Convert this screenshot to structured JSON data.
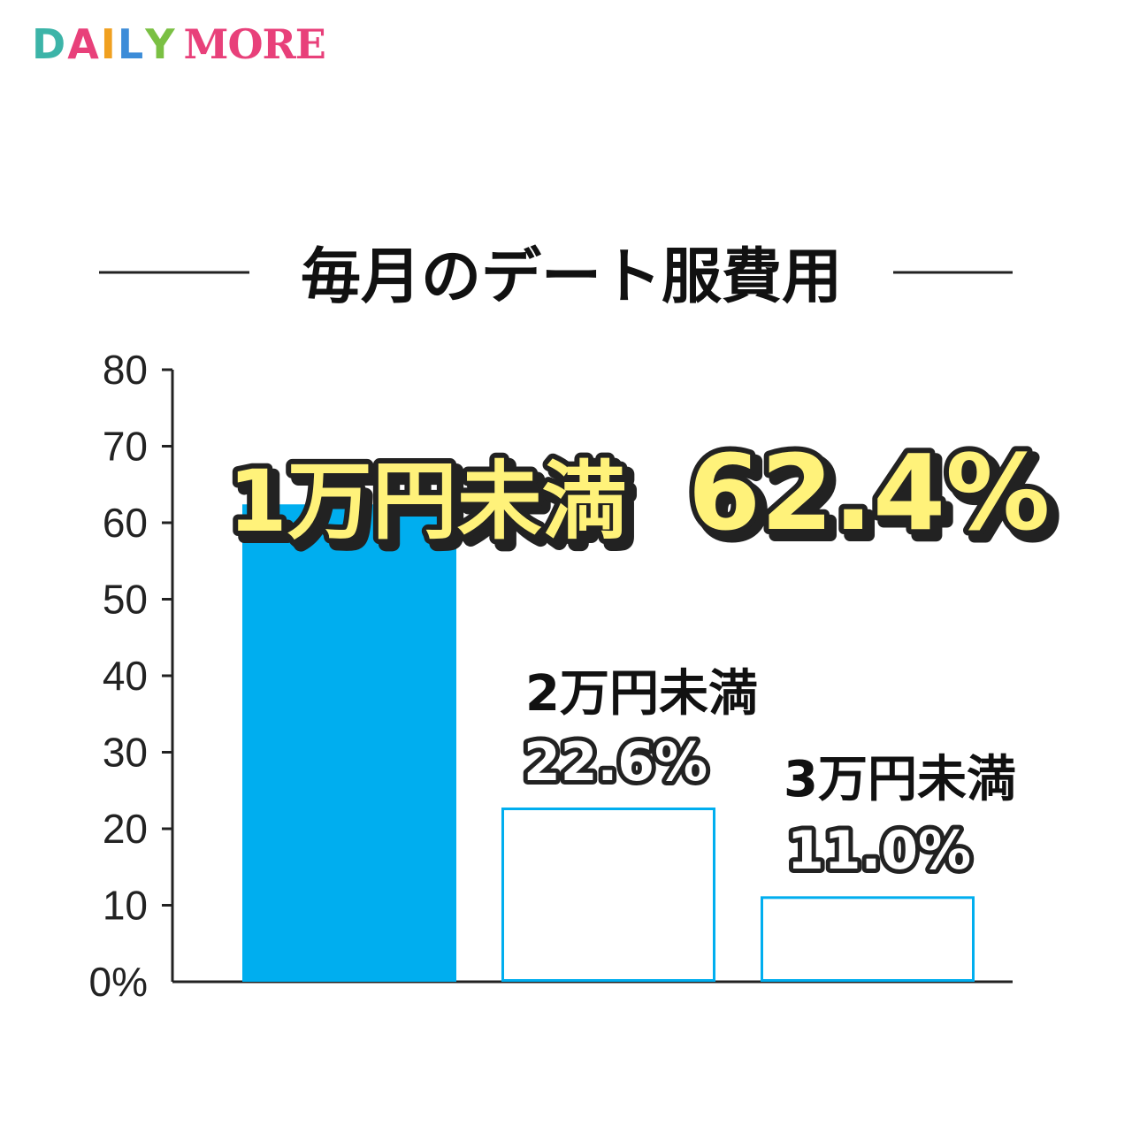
{
  "brand": {
    "logo_part1": "DAILY",
    "logo_part2": "MORE",
    "logo_color_more": "#e8407a"
  },
  "chart_data": {
    "type": "bar",
    "title": "毎月のデート服費用",
    "categories": [
      "1万円未満",
      "2万円未満",
      "3万円未満"
    ],
    "values": [
      62.4,
      22.6,
      11.0
    ],
    "value_labels": [
      "62.4%",
      "22.6%",
      "11.0%"
    ],
    "ylim": [
      0,
      80
    ],
    "yticks": [
      "0%",
      "10",
      "20",
      "30",
      "40",
      "50",
      "60",
      "70",
      "80"
    ],
    "ytick_values": [
      0,
      10,
      20,
      30,
      40,
      50,
      60,
      70,
      80
    ],
    "grid": false,
    "colors": {
      "highlight_fill": "#00aeef",
      "outline": "#00aeef",
      "axis": "#222222",
      "label_highlight_fill": "#fff27a"
    }
  }
}
